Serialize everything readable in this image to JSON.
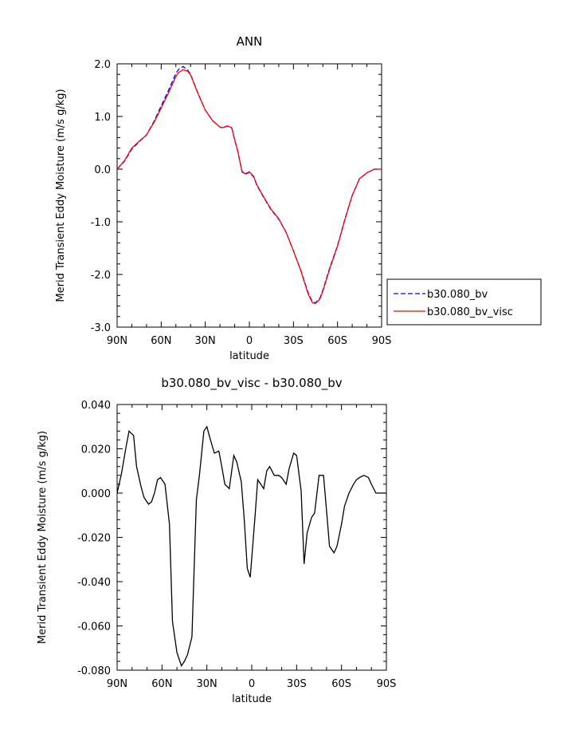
{
  "chart_data": [
    {
      "type": "line",
      "title": "ANN",
      "xlabel": "latitude",
      "ylabel": "Merid Transient Eddy Moisture (m/s g/kg)",
      "x_ticks": [
        {
          "value": 90,
          "label": "90N"
        },
        {
          "value": 60,
          "label": "60N"
        },
        {
          "value": 30,
          "label": "30N"
        },
        {
          "value": 0,
          "label": "0"
        },
        {
          "value": -30,
          "label": "30S"
        },
        {
          "value": -60,
          "label": "60S"
        },
        {
          "value": -90,
          "label": "90S"
        }
      ],
      "y_ticks": [
        {
          "value": 2,
          "label": "2.0"
        },
        {
          "value": 1,
          "label": "1.0"
        },
        {
          "value": 0,
          "label": "0.0"
        },
        {
          "value": -1,
          "label": "-1.0"
        },
        {
          "value": -2,
          "label": "-2.0"
        },
        {
          "value": -3,
          "label": "-3.0"
        }
      ],
      "xlim": [
        90,
        -90
      ],
      "ylim": [
        -3,
        2
      ],
      "legend_position": "outside-right",
      "series": [
        {
          "name": "b30.080_bv",
          "color": "#0000ff",
          "dash": "dashed",
          "x": [
            90,
            85,
            80,
            75,
            70,
            65,
            60,
            55,
            50,
            48,
            45,
            42,
            40,
            35,
            30,
            25,
            20,
            18,
            15,
            12,
            10,
            8,
            5,
            3,
            0,
            -3,
            -5,
            -10,
            -15,
            -20,
            -25,
            -30,
            -35,
            -40,
            -43,
            -45,
            -48,
            -50,
            -55,
            -60,
            -65,
            -70,
            -75,
            -80,
            -85,
            -90
          ],
          "y": [
            0.0,
            0.15,
            0.38,
            0.52,
            0.65,
            0.9,
            1.2,
            1.5,
            1.82,
            1.9,
            1.95,
            1.88,
            1.8,
            1.45,
            1.12,
            0.92,
            0.8,
            0.78,
            0.82,
            0.78,
            0.55,
            0.35,
            -0.05,
            -0.1,
            -0.06,
            -0.15,
            -0.3,
            -0.55,
            -0.78,
            -0.95,
            -1.2,
            -1.55,
            -1.92,
            -2.35,
            -2.52,
            -2.54,
            -2.45,
            -2.3,
            -1.85,
            -1.45,
            -0.95,
            -0.5,
            -0.18,
            -0.07,
            0.0,
            0.0
          ]
        },
        {
          "name": "b30.080_bv_visc",
          "color": "#ff0000",
          "dash": "solid",
          "x": [
            90,
            85,
            80,
            75,
            70,
            65,
            60,
            55,
            50,
            48,
            45,
            42,
            40,
            35,
            30,
            25,
            20,
            18,
            15,
            12,
            10,
            8,
            5,
            3,
            0,
            -3,
            -5,
            -10,
            -15,
            -20,
            -25,
            -30,
            -35,
            -40,
            -43,
            -45,
            -48,
            -50,
            -55,
            -60,
            -65,
            -70,
            -75,
            -80,
            -85,
            -90
          ],
          "y": [
            0.0,
            0.16,
            0.4,
            0.53,
            0.65,
            0.88,
            1.16,
            1.45,
            1.76,
            1.84,
            1.89,
            1.86,
            1.79,
            1.44,
            1.12,
            0.92,
            0.8,
            0.79,
            0.82,
            0.79,
            0.56,
            0.36,
            -0.04,
            -0.09,
            -0.05,
            -0.14,
            -0.29,
            -0.54,
            -0.77,
            -0.94,
            -1.2,
            -1.55,
            -1.93,
            -2.37,
            -2.54,
            -2.55,
            -2.47,
            -2.32,
            -1.87,
            -1.46,
            -0.96,
            -0.5,
            -0.18,
            -0.07,
            0.0,
            0.0
          ]
        }
      ]
    },
    {
      "type": "line",
      "title": "b30.080_bv_visc - b30.080_bv",
      "xlabel": "latitude",
      "ylabel": "Merid Transient Eddy Moisture (m/s g/kg)",
      "x_ticks": [
        {
          "value": 90,
          "label": "90N"
        },
        {
          "value": 60,
          "label": "60N"
        },
        {
          "value": 30,
          "label": "30N"
        },
        {
          "value": 0,
          "label": "0"
        },
        {
          "value": -30,
          "label": "30S"
        },
        {
          "value": -60,
          "label": "60S"
        },
        {
          "value": -90,
          "label": "90S"
        }
      ],
      "y_ticks": [
        {
          "value": 0.04,
          "label": "0.040"
        },
        {
          "value": 0.02,
          "label": "0.020"
        },
        {
          "value": 0.0,
          "label": "0.000"
        },
        {
          "value": -0.02,
          "label": "-0.020"
        },
        {
          "value": -0.04,
          "label": "-0.040"
        },
        {
          "value": -0.06,
          "label": "-0.060"
        },
        {
          "value": -0.08,
          "label": "-0.080"
        }
      ],
      "xlim": [
        90,
        -90
      ],
      "ylim": [
        -0.08,
        0.04
      ],
      "series": [
        {
          "color": "#000000",
          "dash": "solid",
          "x": [
            90,
            87,
            84,
            82,
            79,
            77,
            74,
            72,
            69,
            67,
            65,
            63,
            61,
            58,
            55,
            53,
            50,
            47,
            45,
            43,
            40,
            37,
            35,
            32,
            30,
            28,
            25,
            22,
            20,
            18,
            15,
            12,
            10,
            7,
            5,
            3,
            1,
            -2,
            -4,
            -6,
            -8,
            -10,
            -12,
            -15,
            -18,
            -20,
            -23,
            -25,
            -28,
            -30,
            -33,
            -35,
            -37,
            -40,
            -42,
            -45,
            -48,
            -50,
            -52,
            -55,
            -57,
            -60,
            -62,
            -65,
            -68,
            -70,
            -72,
            -75,
            -78,
            -80,
            -83,
            -85,
            -88,
            -90
          ],
          "y": [
            0.0,
            0.009,
            0.021,
            0.028,
            0.026,
            0.012,
            0.003,
            -0.002,
            -0.005,
            -0.004,
            0.0,
            0.006,
            0.007,
            0.004,
            -0.014,
            -0.058,
            -0.072,
            -0.078,
            -0.076,
            -0.073,
            -0.065,
            -0.003,
            0.008,
            0.028,
            0.03,
            0.025,
            0.018,
            0.019,
            0.012,
            0.004,
            0.002,
            0.017,
            0.014,
            0.005,
            -0.012,
            -0.034,
            -0.038,
            -0.012,
            0.006,
            0.004,
            0.002,
            0.01,
            0.012,
            0.008,
            0.008,
            0.007,
            0.004,
            0.011,
            0.018,
            0.017,
            0.001,
            -0.032,
            -0.018,
            -0.011,
            -0.009,
            0.008,
            0.008,
            -0.008,
            -0.024,
            -0.027,
            -0.024,
            -0.014,
            -0.006,
            0.0,
            0.004,
            0.006,
            0.007,
            0.008,
            0.007,
            0.004,
            0.0,
            0.0,
            0.0,
            0.0
          ]
        }
      ]
    }
  ]
}
